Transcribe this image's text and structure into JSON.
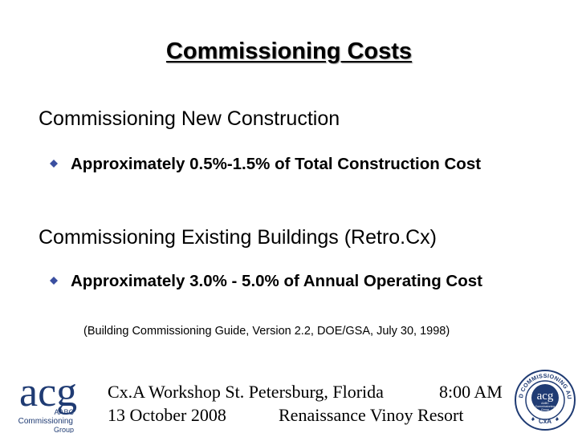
{
  "slide": {
    "title": "Commissioning Costs",
    "sections": [
      {
        "heading": "Commissioning New Construction",
        "bullet_text": "Approximately 0.5%-1.5% of Total Construction Cost"
      },
      {
        "heading": "Commissioning Existing Buildings (Retro.Cx)",
        "bullet_text": "Approximately 3.0% - 5.0% of Annual Operating Cost"
      }
    ],
    "citation": "(Building Commissioning Guide, Version 2.2, DOE/GSA, July 30, 1998)"
  },
  "footer": {
    "event": "Cx.A Workshop St. Petersburg, Florida",
    "time": "8:00 AM",
    "date": "13 October 2008",
    "venue": "Renaissance Vinoy Resort"
  },
  "logo_left": {
    "mark": "acg",
    "line1": "AABC",
    "line2": "Commissioning",
    "line3": "Group"
  },
  "seal": {
    "ring_text": "CERTIFIED COMMISSIONING AUTHORITY",
    "center_mark": "acg",
    "center_sub1": "AABC",
    "center_sub2": "Commissioning",
    "center_sub3": "Group",
    "bottom_text": "CxA"
  },
  "colors": {
    "logo_blue": "#1f3b73",
    "bullet_blue": "#3a4fa0"
  }
}
